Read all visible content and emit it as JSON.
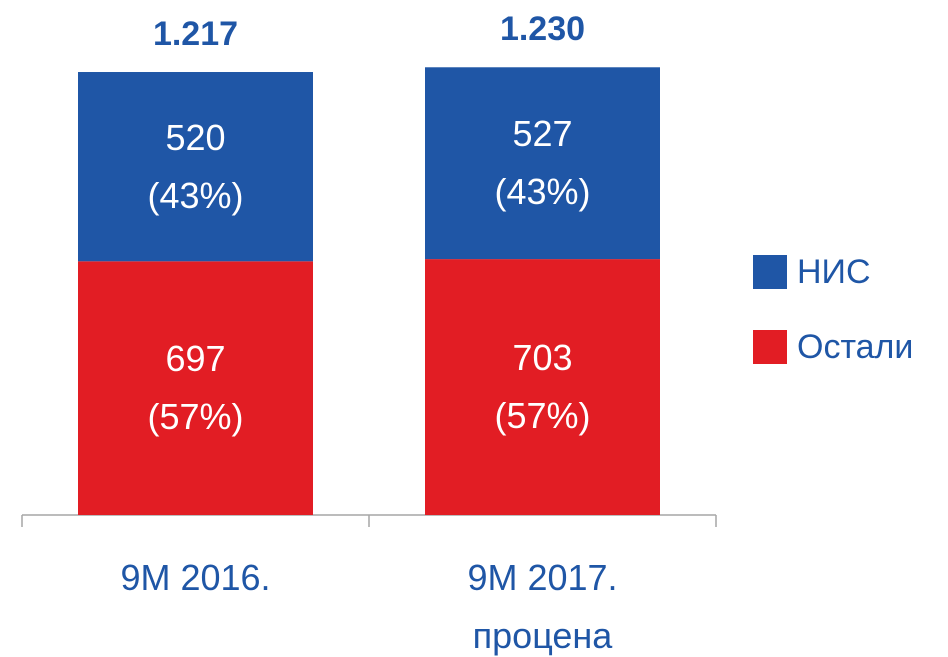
{
  "chart_data": {
    "type": "stacked_bar",
    "categories": [
      "9M 2016.",
      "9M 2017.\nпроцена"
    ],
    "series": [
      {
        "name": "Остали",
        "color": "#e21d24",
        "values": [
          697,
          703
        ],
        "value_labels": [
          "697\n(57%)",
          "703\n(57%)"
        ]
      },
      {
        "name": "НИС",
        "color": "#1f56a6",
        "values": [
          520,
          527
        ],
        "value_labels": [
          "520\n(43%)",
          "527\n(43%)"
        ]
      }
    ],
    "totals": {
      "values": [
        1217,
        1230
      ],
      "value_labels": [
        "1.217",
        "1.230"
      ]
    },
    "legend": "right"
  }
}
